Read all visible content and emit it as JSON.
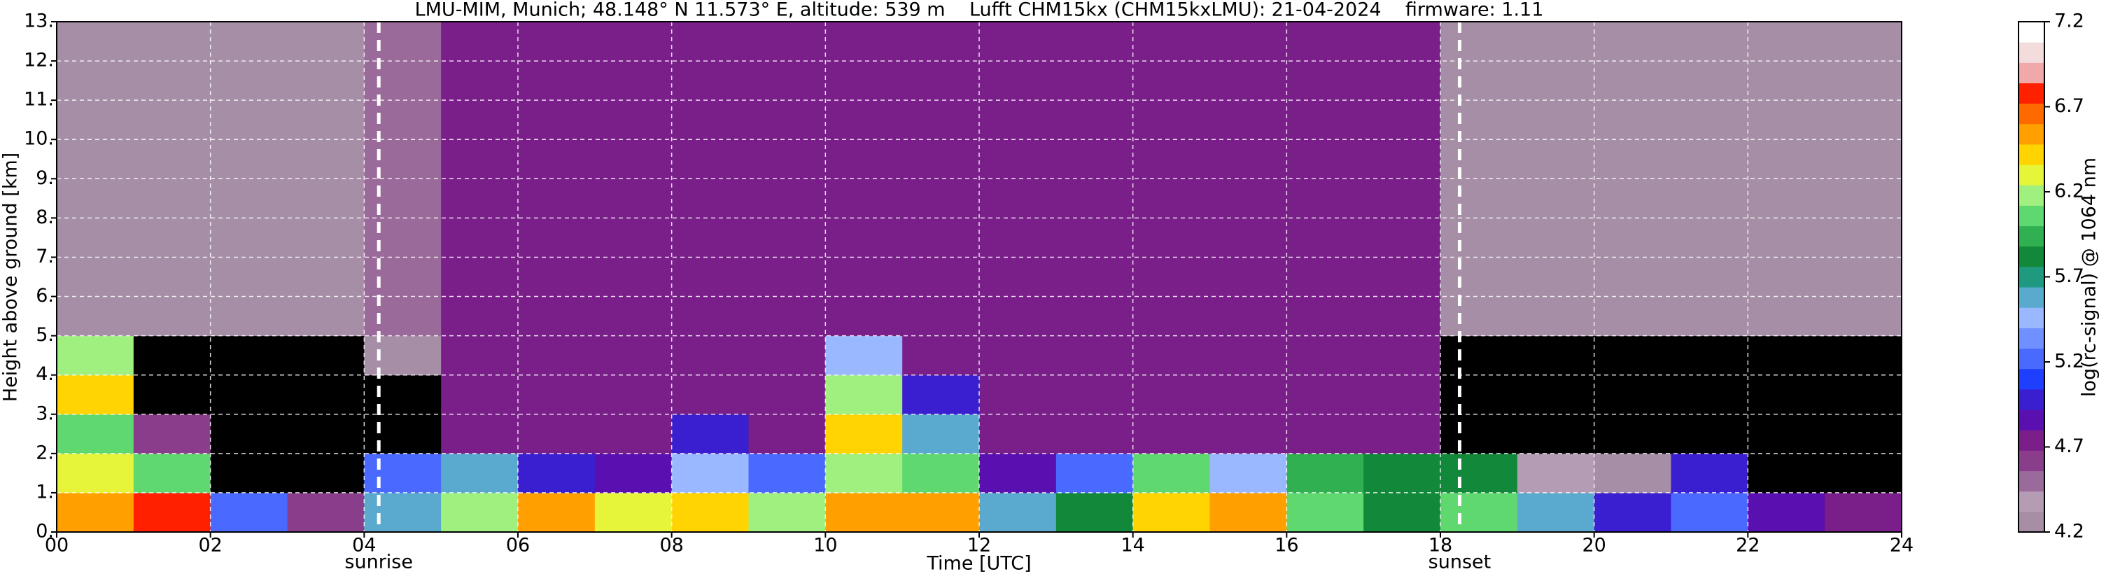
{
  "chart_data": {
    "type": "heatmap",
    "title": "LMU-MIM, Munich; 48.148° N 11.573° E, altitude: 539 m    Lufft CHM15kx (CHM15kxLMU): 21-04-2024    firmware: 1.11",
    "x_label": "Time [UTC]",
    "y_label": "Height above ground [km]",
    "colorbar_label": "log(rc-signal) @ 1064 nm",
    "xlim": [
      0,
      24
    ],
    "xticks": [
      {
        "value": 0,
        "label": "00"
      },
      {
        "value": 2,
        "label": "02"
      },
      {
        "value": 4,
        "label": "04"
      },
      {
        "value": 6,
        "label": "06"
      },
      {
        "value": 8,
        "label": "08"
      },
      10,
      12,
      14,
      16,
      18,
      20,
      22,
      24
    ],
    "ylim": [
      0,
      13
    ],
    "yticks": [
      {
        "value": 0,
        "label": "0."
      },
      {
        "value": 1,
        "label": "1."
      },
      {
        "value": 2,
        "label": "2."
      },
      {
        "value": 3,
        "label": "3."
      },
      {
        "value": 4,
        "label": "4."
      },
      {
        "value": 5,
        "label": "5."
      },
      {
        "value": 6,
        "label": "6."
      },
      {
        "value": 7,
        "label": "7."
      },
      {
        "value": 8,
        "label": "8."
      },
      {
        "value": 9,
        "label": "9."
      },
      {
        "value": 10,
        "label": "10."
      },
      {
        "value": 11,
        "label": "11."
      },
      {
        "value": 12,
        "label": "12."
      },
      {
        "value": 13,
        "label": "13."
      }
    ],
    "clim": [
      4.2,
      7.2
    ],
    "cticks": [
      4.2,
      4.7,
      5.2,
      5.7,
      6.2,
      6.7,
      7.2
    ],
    "grid": true,
    "under_color": "#000000",
    "colors": [
      "#a68ea6",
      "#b59cb5",
      "#9a6a9a",
      "#8a3d8a",
      "#7a1f8a",
      "#5a0fb0",
      "#3a1fd0",
      "#1f3fff",
      "#4a6aff",
      "#7090ff",
      "#9ab8ff",
      "#5aaad0",
      "#1f9a80",
      "#12883a",
      "#30b050",
      "#60d870",
      "#a0f080",
      "#e6f53a",
      "#ffd400",
      "#ffa000",
      "#ff6a00",
      "#ff2000",
      "#f0a8a8",
      "#f4dcdc",
      "#ffffff"
    ],
    "annotations": [
      {
        "label": "sunrise",
        "x": 4.19
      },
      {
        "label": "sunset",
        "x": 18.25
      }
    ],
    "z": [
      [
        6.6,
        6.8,
        5.2,
        4.6,
        5.6,
        6.2,
        6.5,
        6.3,
        6.4,
        6.2,
        6.5,
        6.6,
        5.6,
        5.8,
        6.4,
        6.5,
        6.0,
        5.8,
        6.0,
        5.6,
        5.0,
        5.2,
        4.9,
        4.8
      ],
      [
        6.3,
        6.0,
        4.0,
        4.0,
        5.2,
        5.6,
        5.0,
        4.9,
        5.5,
        5.2,
        6.2,
        6.0,
        4.9,
        5.2,
        6.0,
        5.4,
        5.9,
        5.8,
        5.8,
        4.4,
        4.2,
        5.0,
        4.1,
        4.1
      ],
      [
        6.0,
        4.6,
        4.0,
        4.0,
        4.1,
        4.8,
        4.8,
        4.8,
        5.0,
        4.8,
        6.4,
        5.6,
        4.8,
        4.8,
        4.8,
        4.8,
        4.8,
        4.8,
        4.1,
        4.0,
        4.0,
        4.0,
        4.0,
        4.0
      ],
      [
        6.4,
        4.1,
        4.0,
        4.0,
        4.1,
        4.8,
        4.8,
        4.8,
        4.8,
        4.8,
        6.2,
        5.0,
        4.8,
        4.8,
        4.8,
        4.8,
        4.8,
        4.8,
        4.1,
        4.0,
        4.0,
        4.0,
        4.0,
        4.0
      ],
      [
        6.2,
        4.1,
        4.0,
        4.0,
        4.2,
        4.8,
        4.8,
        4.8,
        4.8,
        4.8,
        5.4,
        4.8,
        4.8,
        4.8,
        4.8,
        4.8,
        4.8,
        4.7,
        4.1,
        4.0,
        4.0,
        4.0,
        4.0,
        4.0
      ],
      [
        4.3,
        4.3,
        4.3,
        4.3,
        4.5,
        4.8,
        4.8,
        4.8,
        4.8,
        4.8,
        4.8,
        4.8,
        4.8,
        4.8,
        4.8,
        4.8,
        4.8,
        4.7,
        4.3,
        4.3,
        4.3,
        4.3,
        4.3,
        4.3
      ],
      [
        4.3,
        4.3,
        4.3,
        4.3,
        4.5,
        4.8,
        4.8,
        4.8,
        4.8,
        4.8,
        4.8,
        4.8,
        4.8,
        4.8,
        4.8,
        4.8,
        4.8,
        4.7,
        4.3,
        4.3,
        4.3,
        4.3,
        4.3,
        4.3
      ],
      [
        4.3,
        4.3,
        4.3,
        4.3,
        4.5,
        4.8,
        4.8,
        4.8,
        4.8,
        4.8,
        4.8,
        4.8,
        4.8,
        4.8,
        4.8,
        4.8,
        4.8,
        4.7,
        4.3,
        4.3,
        4.3,
        4.3,
        4.3,
        4.3
      ],
      [
        4.3,
        4.3,
        4.3,
        4.3,
        4.5,
        4.8,
        4.8,
        4.8,
        4.8,
        4.8,
        4.8,
        4.8,
        4.8,
        4.8,
        4.8,
        4.8,
        4.8,
        4.7,
        4.3,
        4.3,
        4.3,
        4.3,
        4.3,
        4.3
      ],
      [
        4.3,
        4.3,
        4.3,
        4.3,
        4.5,
        4.8,
        4.8,
        4.8,
        4.8,
        4.8,
        4.8,
        4.8,
        4.8,
        4.8,
        4.8,
        4.8,
        4.8,
        4.7,
        4.3,
        4.3,
        4.3,
        4.3,
        4.3,
        4.3
      ],
      [
        4.3,
        4.3,
        4.3,
        4.3,
        4.5,
        4.8,
        4.8,
        4.8,
        4.8,
        4.8,
        4.8,
        4.8,
        4.8,
        4.8,
        4.8,
        4.8,
        4.8,
        4.7,
        4.3,
        4.3,
        4.3,
        4.3,
        4.3,
        4.3
      ],
      [
        4.3,
        4.3,
        4.3,
        4.3,
        4.5,
        4.8,
        4.8,
        4.8,
        4.8,
        4.8,
        4.8,
        4.8,
        4.8,
        4.8,
        4.8,
        4.8,
        4.8,
        4.7,
        4.3,
        4.3,
        4.3,
        4.3,
        4.3,
        4.3
      ],
      [
        4.3,
        4.3,
        4.3,
        4.3,
        4.5,
        4.8,
        4.8,
        4.8,
        4.8,
        4.8,
        4.8,
        4.8,
        4.8,
        4.8,
        4.8,
        4.8,
        4.8,
        4.7,
        4.3,
        4.3,
        4.3,
        4.3,
        4.3,
        4.3
      ]
    ]
  }
}
